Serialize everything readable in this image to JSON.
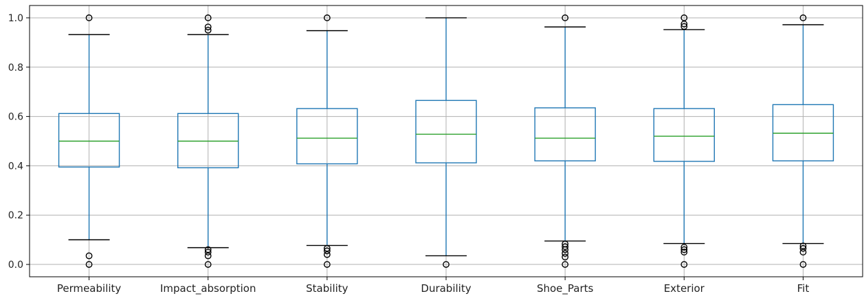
{
  "chart_data": {
    "type": "box",
    "title": "",
    "xlabel": "",
    "ylabel": "",
    "ylim": [
      -0.05,
      1.05
    ],
    "yticks": [
      0.0,
      0.2,
      0.4,
      0.6,
      0.8,
      1.0
    ],
    "ytick_labels": [
      "0.0",
      "0.2",
      "0.4",
      "0.6",
      "0.8",
      "1.0"
    ],
    "grid": true,
    "categories": [
      "Permeability",
      "Impact_absorption",
      "Stability",
      "Durability",
      "Shoe_Parts",
      "Exterior",
      "Fit"
    ],
    "boxes": [
      {
        "category": "Permeability",
        "whisker_low": 0.1,
        "q1": 0.395,
        "median": 0.5,
        "q3": 0.612,
        "whisker_high": 0.932,
        "outliers": [
          0.0,
          0.035,
          1.0
        ]
      },
      {
        "category": "Impact_absorption",
        "whisker_low": 0.068,
        "q1": 0.392,
        "median": 0.5,
        "q3": 0.612,
        "whisker_high": 0.932,
        "outliers": [
          0.0,
          0.035,
          0.05,
          0.06,
          0.95,
          0.963,
          1.0
        ]
      },
      {
        "category": "Stability",
        "whisker_low": 0.077,
        "q1": 0.408,
        "median": 0.512,
        "q3": 0.632,
        "whisker_high": 0.948,
        "outliers": [
          0.0,
          0.04,
          0.055,
          0.065,
          1.0
        ]
      },
      {
        "category": "Durability",
        "whisker_low": 0.035,
        "q1": 0.412,
        "median": 0.528,
        "q3": 0.665,
        "whisker_high": 1.0,
        "outliers": [
          0.0
        ]
      },
      {
        "category": "Shoe_Parts",
        "whisker_low": 0.095,
        "q1": 0.42,
        "median": 0.512,
        "q3": 0.635,
        "whisker_high": 0.963,
        "outliers": [
          0.0,
          0.03,
          0.045,
          0.06,
          0.072,
          0.083,
          1.0
        ]
      },
      {
        "category": "Exterior",
        "whisker_low": 0.085,
        "q1": 0.418,
        "median": 0.52,
        "q3": 0.632,
        "whisker_high": 0.952,
        "outliers": [
          0.0,
          0.05,
          0.06,
          0.07,
          0.965,
          0.975,
          1.0
        ]
      },
      {
        "category": "Fit",
        "whisker_low": 0.085,
        "q1": 0.42,
        "median": 0.532,
        "q3": 0.648,
        "whisker_high": 0.972,
        "outliers": [
          0.0,
          0.05,
          0.065,
          0.075,
          1.0
        ]
      }
    ],
    "colors": {
      "box": "#1f77b4",
      "median": "#2ca02c",
      "whisker": "#1f77b4",
      "cap": "#000000",
      "outlier": "#000000",
      "grid": "#b0b0b0",
      "axes": "#000000"
    }
  }
}
